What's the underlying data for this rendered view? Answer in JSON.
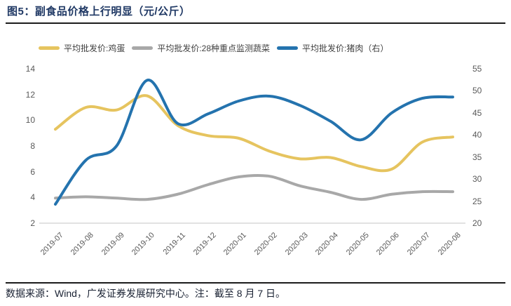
{
  "header": {
    "title": "图5：副食品价格上行明显（元/公斤）"
  },
  "legend": {
    "items": [
      {
        "id": "egg",
        "label": "平均批发价:鸡蛋",
        "color": "#e6c45f"
      },
      {
        "id": "vegetables",
        "label": "平均批发价:28种重点监测蔬菜",
        "color": "#a8a8a8"
      },
      {
        "id": "pork",
        "label": "平均批发价:猪肉（右）",
        "color": "#2473ae"
      }
    ]
  },
  "footer": {
    "note": "数据来源：Wind，广发证券发展研究中心。注：截至 8 月 7 日。"
  },
  "chart_data": {
    "type": "line",
    "title": "副食品价格上行明显（元/公斤）",
    "categories": [
      "2019-07",
      "2019-08",
      "2019-09",
      "2019-10",
      "2019-11",
      "2019-12",
      "2020-01",
      "2020-02",
      "2020-03",
      "2020-04",
      "2020-05",
      "2020-06",
      "2020-07",
      "2020-08"
    ],
    "series": [
      {
        "id": "egg",
        "name": "平均批发价:鸡蛋",
        "axis": "left",
        "color": "#e6c45f",
        "values": [
          9.3,
          11.0,
          10.8,
          11.9,
          9.6,
          8.8,
          8.6,
          7.6,
          7.0,
          7.1,
          6.4,
          6.2,
          8.3,
          8.7
        ]
      },
      {
        "id": "vegetables",
        "name": "平均批发价:28种重点监测蔬菜",
        "axis": "left",
        "color": "#a8a8a8",
        "values": [
          3.95,
          4.05,
          3.95,
          3.85,
          4.25,
          5.0,
          5.6,
          5.65,
          4.9,
          4.4,
          3.85,
          4.25,
          4.45,
          4.45
        ]
      },
      {
        "id": "pork",
        "name": "平均批发价:猪肉（右）",
        "axis": "right",
        "color": "#2473ae",
        "values": [
          24.3,
          34.3,
          37.5,
          52.4,
          42.6,
          44.8,
          47.7,
          48.8,
          46.7,
          43.1,
          38.9,
          45.0,
          48.3,
          48.6
        ]
      }
    ],
    "left_axis": {
      "min": 2,
      "max": 14,
      "ticks": [
        14,
        12,
        10,
        8,
        6,
        4,
        2
      ]
    },
    "right_axis": {
      "min": 20,
      "max": 55,
      "ticks": [
        55,
        50,
        45,
        40,
        35,
        30,
        25,
        20
      ]
    },
    "grid": false,
    "legend_position": "top",
    "axis_line_color": "#d9d9d9",
    "tick_label_color": "#595959"
  }
}
